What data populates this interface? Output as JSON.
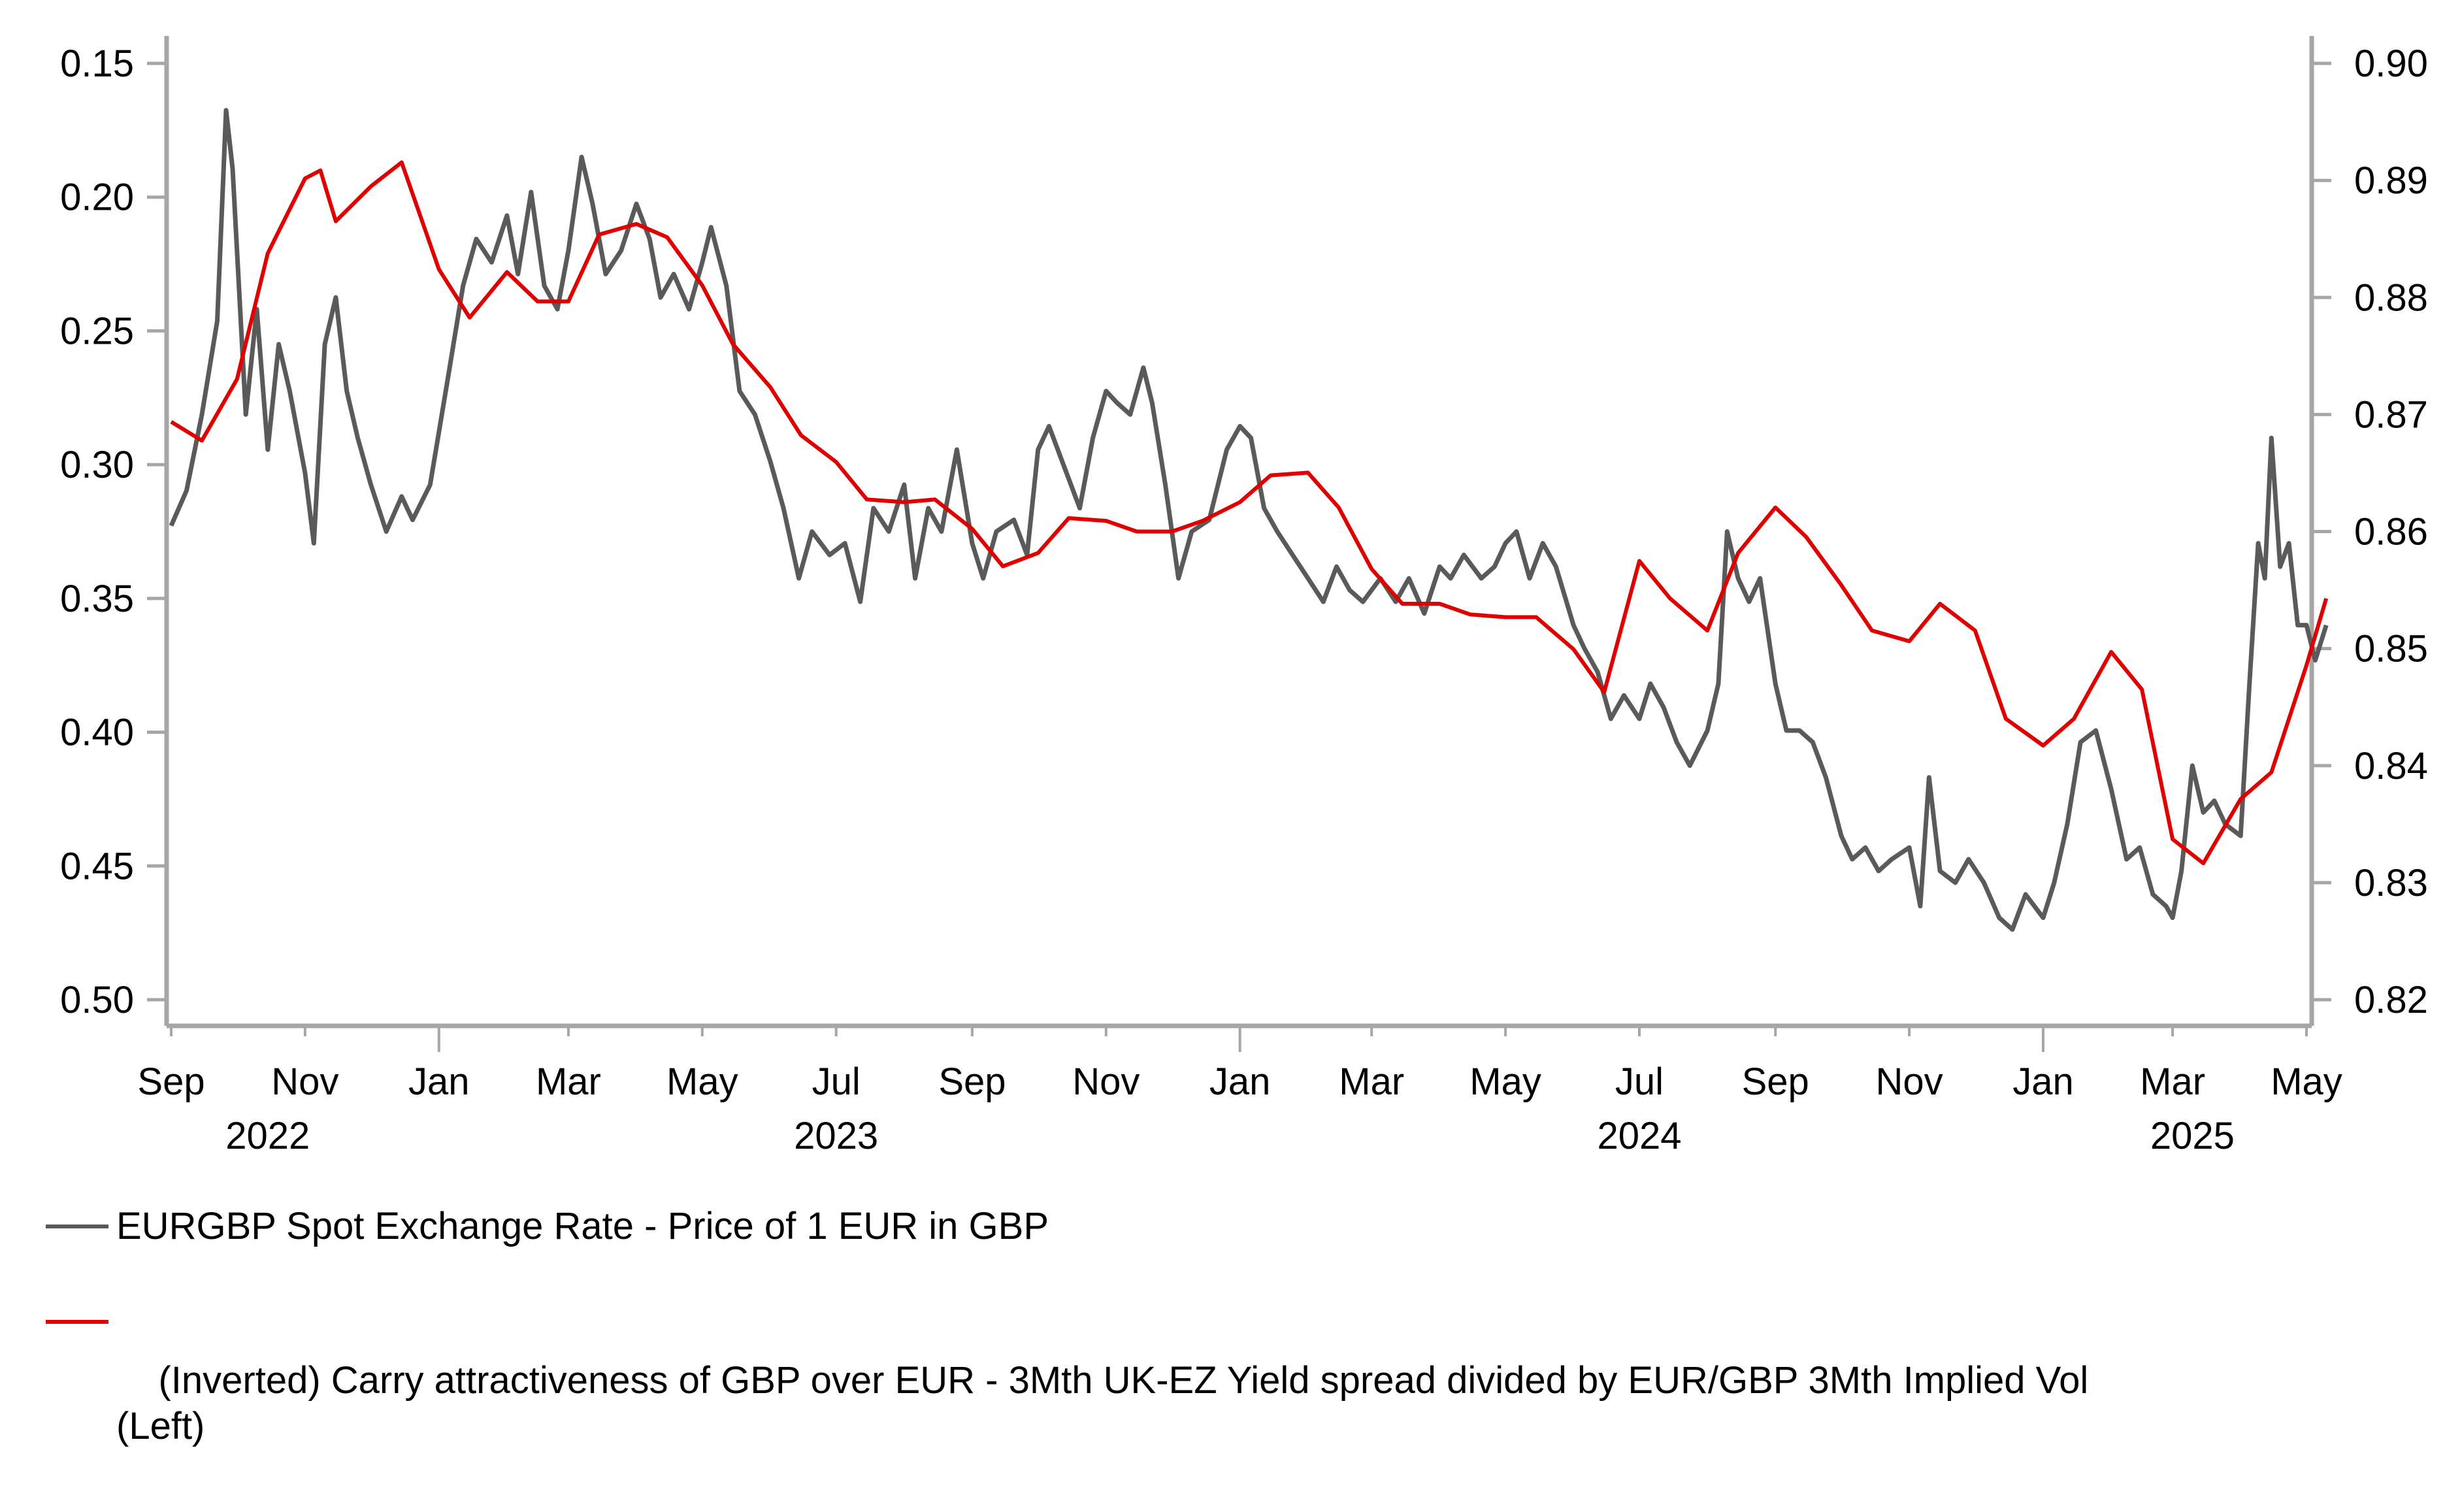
{
  "chart_data": {
    "type": "line",
    "title": "",
    "xlabel": "",
    "ylabel_left": "",
    "ylabel_right": "",
    "grid": false,
    "legend_position": "bottom-left",
    "x_axis": {
      "range": [
        "2022-09-01",
        "2025-05-10"
      ],
      "month_ticks": [
        "Sep",
        "Nov",
        "Jan",
        "Mar",
        "May",
        "Jul",
        "Sep",
        "Nov",
        "Jan",
        "Mar",
        "May",
        "Jul",
        "Sep",
        "Nov",
        "Jan",
        "Mar",
        "May"
      ],
      "month_tick_dates": [
        "2022-09",
        "2022-11",
        "2023-01",
        "2023-03",
        "2023-05",
        "2023-07",
        "2023-09",
        "2023-11",
        "2024-01",
        "2024-03",
        "2024-05",
        "2024-07",
        "2024-09",
        "2024-11",
        "2025-01",
        "2025-03",
        "2025-05"
      ],
      "year_labels": [
        {
          "label": "2022",
          "date": "2022-10-15"
        },
        {
          "label": "2023",
          "date": "2023-07-01"
        },
        {
          "label": "2024",
          "date": "2024-07-01"
        },
        {
          "label": "2025",
          "date": "2025-03-10"
        }
      ]
    },
    "left_axis": {
      "ylim": [
        0.5,
        0.15
      ],
      "inverted": true,
      "ticks": [
        "0.15",
        "0.20",
        "0.25",
        "0.30",
        "0.35",
        "0.40",
        "0.45",
        "0.50"
      ]
    },
    "right_axis": {
      "ylim": [
        0.82,
        0.9
      ],
      "ticks": [
        "0.90",
        "0.89",
        "0.88",
        "0.87",
        "0.86",
        "0.85",
        "0.84",
        "0.83",
        "0.82"
      ]
    },
    "series": [
      {
        "name": "EURGBP Spot Exchange Rate - Price of 1 EUR in GBP",
        "axis": "right",
        "color": "#5a5a5a",
        "points": [
          [
            "2022-09-01",
            0.8605
          ],
          [
            "2022-09-08",
            0.8635
          ],
          [
            "2022-09-15",
            0.87
          ],
          [
            "2022-09-22",
            0.878
          ],
          [
            "2022-09-26",
            0.896
          ],
          [
            "2022-09-29",
            0.891
          ],
          [
            "2022-10-05",
            0.87
          ],
          [
            "2022-10-10",
            0.879
          ],
          [
            "2022-10-15",
            0.867
          ],
          [
            "2022-10-20",
            0.876
          ],
          [
            "2022-10-25",
            0.872
          ],
          [
            "2022-11-01",
            0.865
          ],
          [
            "2022-11-05",
            0.859
          ],
          [
            "2022-11-10",
            0.876
          ],
          [
            "2022-11-15",
            0.88
          ],
          [
            "2022-11-20",
            0.872
          ],
          [
            "2022-11-25",
            0.868
          ],
          [
            "2022-12-01",
            0.864
          ],
          [
            "2022-12-08",
            0.86
          ],
          [
            "2022-12-15",
            0.863
          ],
          [
            "2022-12-20",
            0.861
          ],
          [
            "2022-12-28",
            0.864
          ],
          [
            "2023-01-05",
            0.873
          ],
          [
            "2023-01-12",
            0.881
          ],
          [
            "2023-01-18",
            0.885
          ],
          [
            "2023-01-25",
            0.883
          ],
          [
            "2023-02-01",
            0.887
          ],
          [
            "2023-02-06",
            0.882
          ],
          [
            "2023-02-12",
            0.889
          ],
          [
            "2023-02-18",
            0.881
          ],
          [
            "2023-02-24",
            0.879
          ],
          [
            "2023-03-01",
            0.884
          ],
          [
            "2023-03-07",
            0.892
          ],
          [
            "2023-03-12",
            0.888
          ],
          [
            "2023-03-18",
            0.882
          ],
          [
            "2023-03-25",
            0.884
          ],
          [
            "2023-04-01",
            0.888
          ],
          [
            "2023-04-07",
            0.885
          ],
          [
            "2023-04-12",
            0.88
          ],
          [
            "2023-04-18",
            0.882
          ],
          [
            "2023-04-25",
            0.879
          ],
          [
            "2023-05-01",
            0.883
          ],
          [
            "2023-05-05",
            0.886
          ],
          [
            "2023-05-12",
            0.881
          ],
          [
            "2023-05-18",
            0.872
          ],
          [
            "2023-05-25",
            0.87
          ],
          [
            "2023-06-01",
            0.866
          ],
          [
            "2023-06-07",
            0.862
          ],
          [
            "2023-06-14",
            0.856
          ],
          [
            "2023-06-20",
            0.86
          ],
          [
            "2023-06-28",
            0.858
          ],
          [
            "2023-07-05",
            0.859
          ],
          [
            "2023-07-12",
            0.854
          ],
          [
            "2023-07-18",
            0.862
          ],
          [
            "2023-07-25",
            0.86
          ],
          [
            "2023-08-01",
            0.864
          ],
          [
            "2023-08-06",
            0.856
          ],
          [
            "2023-08-12",
            0.862
          ],
          [
            "2023-08-18",
            0.86
          ],
          [
            "2023-08-25",
            0.867
          ],
          [
            "2023-09-01",
            0.859
          ],
          [
            "2023-09-06",
            0.856
          ],
          [
            "2023-09-12",
            0.86
          ],
          [
            "2023-09-20",
            0.861
          ],
          [
            "2023-09-26",
            0.858
          ],
          [
            "2023-10-01",
            0.867
          ],
          [
            "2023-10-06",
            0.869
          ],
          [
            "2023-10-12",
            0.866
          ],
          [
            "2023-10-20",
            0.862
          ],
          [
            "2023-10-26",
            0.868
          ],
          [
            "2023-11-01",
            0.872
          ],
          [
            "2023-11-06",
            0.871
          ],
          [
            "2023-11-12",
            0.87
          ],
          [
            "2023-11-18",
            0.874
          ],
          [
            "2023-11-22",
            0.871
          ],
          [
            "2023-11-28",
            0.864
          ],
          [
            "2023-12-04",
            0.856
          ],
          [
            "2023-12-10",
            0.86
          ],
          [
            "2023-12-18",
            0.861
          ],
          [
            "2023-12-26",
            0.867
          ],
          [
            "2024-01-01",
            0.869
          ],
          [
            "2024-01-06",
            0.868
          ],
          [
            "2024-01-12",
            0.862
          ],
          [
            "2024-01-18",
            0.86
          ],
          [
            "2024-01-25",
            0.858
          ],
          [
            "2024-02-01",
            0.856
          ],
          [
            "2024-02-08",
            0.854
          ],
          [
            "2024-02-14",
            0.857
          ],
          [
            "2024-02-20",
            0.855
          ],
          [
            "2024-02-26",
            0.854
          ],
          [
            "2024-03-05",
            0.856
          ],
          [
            "2024-03-12",
            0.854
          ],
          [
            "2024-03-18",
            0.856
          ],
          [
            "2024-03-25",
            0.853
          ],
          [
            "2024-04-01",
            0.857
          ],
          [
            "2024-04-06",
            0.856
          ],
          [
            "2024-04-12",
            0.858
          ],
          [
            "2024-04-20",
            0.856
          ],
          [
            "2024-04-26",
            0.857
          ],
          [
            "2024-05-01",
            0.859
          ],
          [
            "2024-05-06",
            0.86
          ],
          [
            "2024-05-12",
            0.856
          ],
          [
            "2024-05-18",
            0.859
          ],
          [
            "2024-05-24",
            0.857
          ],
          [
            "2024-06-01",
            0.852
          ],
          [
            "2024-06-06",
            0.85
          ],
          [
            "2024-06-12",
            0.848
          ],
          [
            "2024-06-18",
            0.844
          ],
          [
            "2024-06-24",
            0.846
          ],
          [
            "2024-07-01",
            0.844
          ],
          [
            "2024-07-06",
            0.847
          ],
          [
            "2024-07-12",
            0.845
          ],
          [
            "2024-07-18",
            0.842
          ],
          [
            "2024-07-24",
            0.84
          ],
          [
            "2024-08-01",
            0.843
          ],
          [
            "2024-08-06",
            0.847
          ],
          [
            "2024-08-10",
            0.86
          ],
          [
            "2024-08-15",
            0.856
          ],
          [
            "2024-08-20",
            0.854
          ],
          [
            "2024-08-25",
            0.856
          ],
          [
            "2024-09-01",
            0.847
          ],
          [
            "2024-09-06",
            0.843
          ],
          [
            "2024-09-12",
            0.843
          ],
          [
            "2024-09-18",
            0.842
          ],
          [
            "2024-09-24",
            0.839
          ],
          [
            "2024-10-01",
            0.834
          ],
          [
            "2024-10-06",
            0.832
          ],
          [
            "2024-10-12",
            0.833
          ],
          [
            "2024-10-18",
            0.831
          ],
          [
            "2024-10-24",
            0.832
          ],
          [
            "2024-11-01",
            0.833
          ],
          [
            "2024-11-06",
            0.828
          ],
          [
            "2024-11-10",
            0.839
          ],
          [
            "2024-11-15",
            0.831
          ],
          [
            "2024-11-22",
            0.83
          ],
          [
            "2024-11-28",
            0.832
          ],
          [
            "2024-12-05",
            0.83
          ],
          [
            "2024-12-12",
            0.827
          ],
          [
            "2024-12-18",
            0.826
          ],
          [
            "2024-12-24",
            0.829
          ],
          [
            "2025-01-01",
            0.827
          ],
          [
            "2025-01-06",
            0.83
          ],
          [
            "2025-01-12",
            0.835
          ],
          [
            "2025-01-18",
            0.842
          ],
          [
            "2025-01-25",
            0.843
          ],
          [
            "2025-02-01",
            0.838
          ],
          [
            "2025-02-08",
            0.832
          ],
          [
            "2025-02-14",
            0.833
          ],
          [
            "2025-02-20",
            0.829
          ],
          [
            "2025-02-26",
            0.828
          ],
          [
            "2025-03-01",
            0.827
          ],
          [
            "2025-03-05",
            0.831
          ],
          [
            "2025-03-10",
            0.84
          ],
          [
            "2025-03-15",
            0.836
          ],
          [
            "2025-03-20",
            0.837
          ],
          [
            "2025-03-25",
            0.835
          ],
          [
            "2025-04-01",
            0.834
          ],
          [
            "2025-04-05",
            0.847
          ],
          [
            "2025-04-09",
            0.859
          ],
          [
            "2025-04-12",
            0.856
          ],
          [
            "2025-04-15",
            0.868
          ],
          [
            "2025-04-19",
            0.857
          ],
          [
            "2025-04-23",
            0.859
          ],
          [
            "2025-04-27",
            0.852
          ],
          [
            "2025-05-01",
            0.852
          ],
          [
            "2025-05-05",
            0.849
          ],
          [
            "2025-05-10",
            0.852
          ]
        ]
      },
      {
        "name": "(Inverted) Carry attractiveness of GBP over EUR - 3Mth UK-EZ Yield spread divided by EUR/GBP 3Mth Implied Vol   (Left)",
        "axis": "left",
        "color": "#e00000",
        "points": [
          [
            "2022-09-01",
            0.284
          ],
          [
            "2022-09-15",
            0.291
          ],
          [
            "2022-10-01",
            0.268
          ],
          [
            "2022-10-15",
            0.221
          ],
          [
            "2022-11-01",
            0.193
          ],
          [
            "2022-11-08",
            0.19
          ],
          [
            "2022-11-15",
            0.209
          ],
          [
            "2022-12-01",
            0.196
          ],
          [
            "2022-12-15",
            0.187
          ],
          [
            "2023-01-01",
            0.227
          ],
          [
            "2023-01-15",
            0.245
          ],
          [
            "2023-02-01",
            0.228
          ],
          [
            "2023-02-15",
            0.239
          ],
          [
            "2023-03-01",
            0.239
          ],
          [
            "2023-03-15",
            0.214
          ],
          [
            "2023-04-01",
            0.21
          ],
          [
            "2023-04-15",
            0.215
          ],
          [
            "2023-05-01",
            0.233
          ],
          [
            "2023-05-15",
            0.255
          ],
          [
            "2023-06-01",
            0.271
          ],
          [
            "2023-06-15",
            0.289
          ],
          [
            "2023-07-01",
            0.299
          ],
          [
            "2023-07-15",
            0.313
          ],
          [
            "2023-08-01",
            0.314
          ],
          [
            "2023-08-15",
            0.313
          ],
          [
            "2023-09-01",
            0.324
          ],
          [
            "2023-09-15",
            0.338
          ],
          [
            "2023-10-01",
            0.333
          ],
          [
            "2023-10-15",
            0.32
          ],
          [
            "2023-11-01",
            0.321
          ],
          [
            "2023-11-15",
            0.325
          ],
          [
            "2023-12-01",
            0.325
          ],
          [
            "2023-12-15",
            0.321
          ],
          [
            "2024-01-01",
            0.314
          ],
          [
            "2024-01-15",
            0.304
          ],
          [
            "2024-02-01",
            0.303
          ],
          [
            "2024-02-15",
            0.316
          ],
          [
            "2024-03-01",
            0.339
          ],
          [
            "2024-03-15",
            0.352
          ],
          [
            "2024-04-01",
            0.352
          ],
          [
            "2024-04-15",
            0.356
          ],
          [
            "2024-05-01",
            0.357
          ],
          [
            "2024-05-15",
            0.357
          ],
          [
            "2024-06-01",
            0.369
          ],
          [
            "2024-06-15",
            0.385
          ],
          [
            "2024-07-01",
            0.336
          ],
          [
            "2024-07-15",
            0.35
          ],
          [
            "2024-08-01",
            0.362
          ],
          [
            "2024-08-15",
            0.333
          ],
          [
            "2024-09-01",
            0.316
          ],
          [
            "2024-09-15",
            0.327
          ],
          [
            "2024-10-01",
            0.345
          ],
          [
            "2024-10-15",
            0.362
          ],
          [
            "2024-11-01",
            0.366
          ],
          [
            "2024-11-15",
            0.352
          ],
          [
            "2024-12-01",
            0.362
          ],
          [
            "2024-12-15",
            0.395
          ],
          [
            "2025-01-01",
            0.405
          ],
          [
            "2025-01-15",
            0.395
          ],
          [
            "2025-02-01",
            0.37
          ],
          [
            "2025-02-15",
            0.384
          ],
          [
            "2025-03-01",
            0.44
          ],
          [
            "2025-03-15",
            0.449
          ],
          [
            "2025-04-01",
            0.425
          ],
          [
            "2025-04-15",
            0.415
          ],
          [
            "2025-05-01",
            0.375
          ],
          [
            "2025-05-10",
            0.35
          ]
        ]
      }
    ]
  },
  "legend": {
    "items": [
      {
        "label": "EURGBP Spot Exchange Rate - Price of 1 EUR in GBP",
        "color": "#5a5a5a"
      },
      {
        "label": "(Inverted) Carry attractiveness of GBP over EUR - 3Mth UK-EZ Yield spread divided by EUR/GBP 3Mth Implied Vol   (Left)",
        "color": "#e00000"
      }
    ]
  },
  "colors": {
    "axis": "#a6a6a6",
    "gray_series": "#5a5a5a",
    "red_series": "#e00000"
  }
}
